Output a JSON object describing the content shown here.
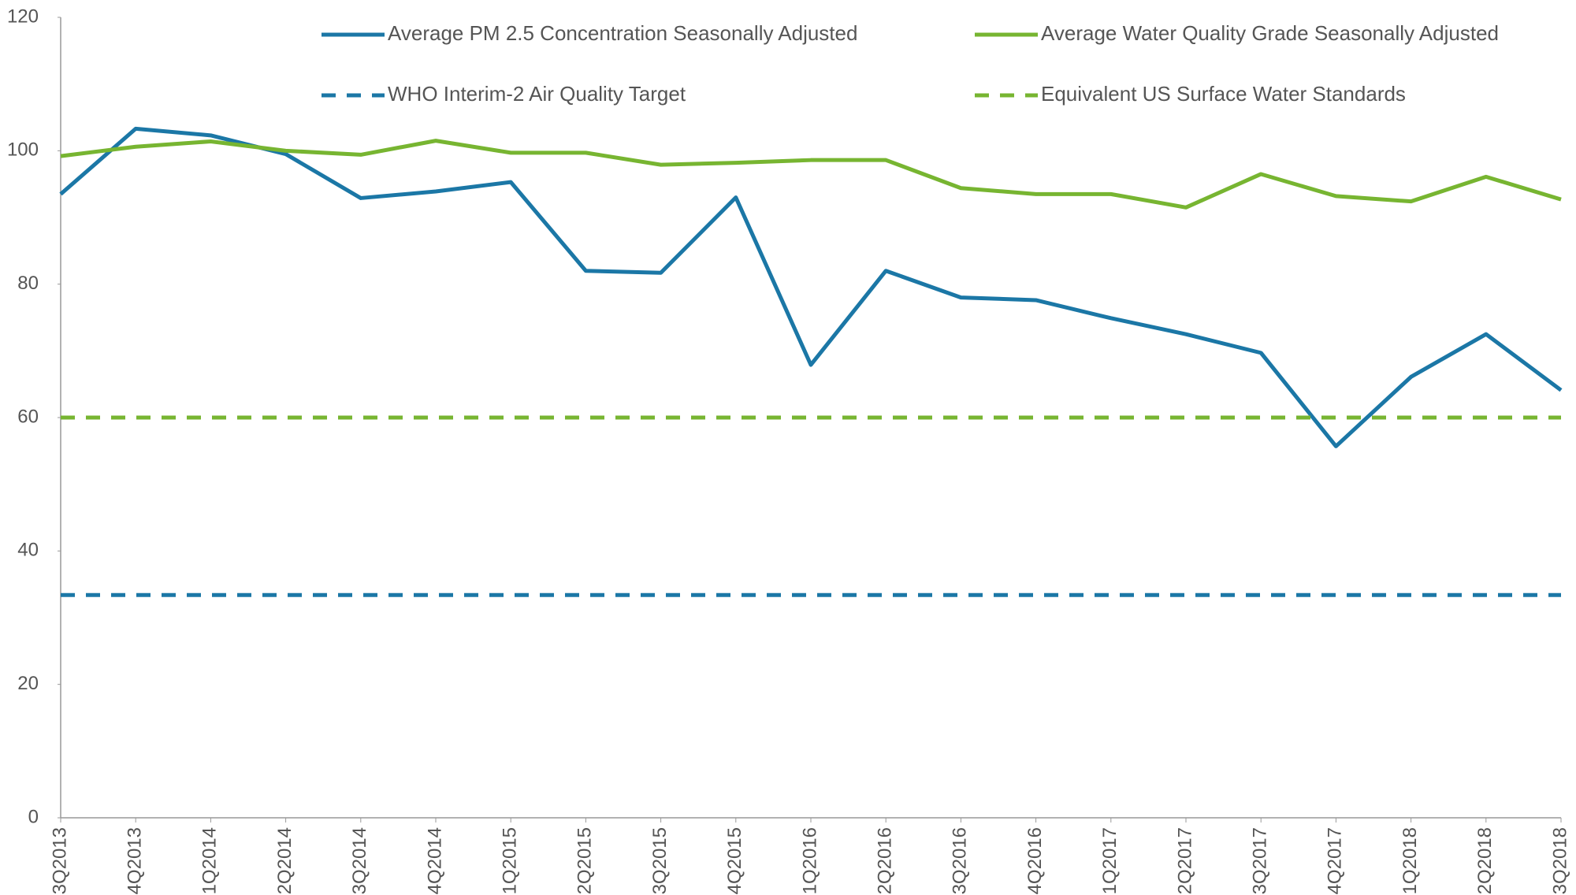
{
  "chart_data": {
    "type": "line",
    "categories": [
      "3Q2013",
      "4Q2013",
      "1Q2014",
      "2Q2014",
      "3Q2014",
      "4Q2014",
      "1Q2015",
      "2Q2015",
      "3Q2015",
      "4Q2015",
      "1Q2016",
      "2Q2016",
      "3Q2016",
      "4Q2016",
      "1Q2017",
      "2Q2017",
      "3Q2017",
      "4Q2017",
      "1Q2018",
      "2Q2018",
      "3Q2018"
    ],
    "series": [
      {
        "name": "Average PM 2.5 Concentration Seasonally Adjusted",
        "color": "#1b77a6",
        "dashed": false,
        "values": [
          93.5,
          103.3,
          102.3,
          99.5,
          92.9,
          93.9,
          95.3,
          82,
          81.7,
          93,
          67.9,
          82,
          78,
          77.6,
          74.9,
          72.5,
          69.7,
          55.7,
          66.1,
          72.5,
          64.1
        ]
      },
      {
        "name": "Average Water Quality Grade Seasonally Adjusted",
        "color": "#77b531",
        "dashed": false,
        "values": [
          99.2,
          100.6,
          101.4,
          100,
          99.4,
          101.5,
          99.7,
          99.7,
          97.9,
          98.2,
          98.6,
          98.6,
          94.4,
          93.5,
          93.5,
          91.5,
          96.5,
          93.2,
          92.4,
          96.1,
          92.7
        ]
      },
      {
        "name": "WHO Interim-2 Air Quality Target",
        "color": "#1b77a6",
        "dashed": true,
        "values": [
          33.4,
          33.4,
          33.4,
          33.4,
          33.4,
          33.4,
          33.4,
          33.4,
          33.4,
          33.4,
          33.4,
          33.4,
          33.4,
          33.4,
          33.4,
          33.4,
          33.4,
          33.4,
          33.4,
          33.4,
          33.4
        ]
      },
      {
        "name": "Equivalent US Surface Water Standards",
        "color": "#77b531",
        "dashed": true,
        "values": [
          60,
          60,
          60,
          60,
          60,
          60,
          60,
          60,
          60,
          60,
          60,
          60,
          60,
          60,
          60,
          60,
          60,
          60,
          60,
          60,
          60
        ]
      }
    ],
    "ylim": [
      0,
      120
    ],
    "yticks": [
      0,
      20,
      40,
      60,
      80,
      100,
      120
    ],
    "grid": false
  }
}
